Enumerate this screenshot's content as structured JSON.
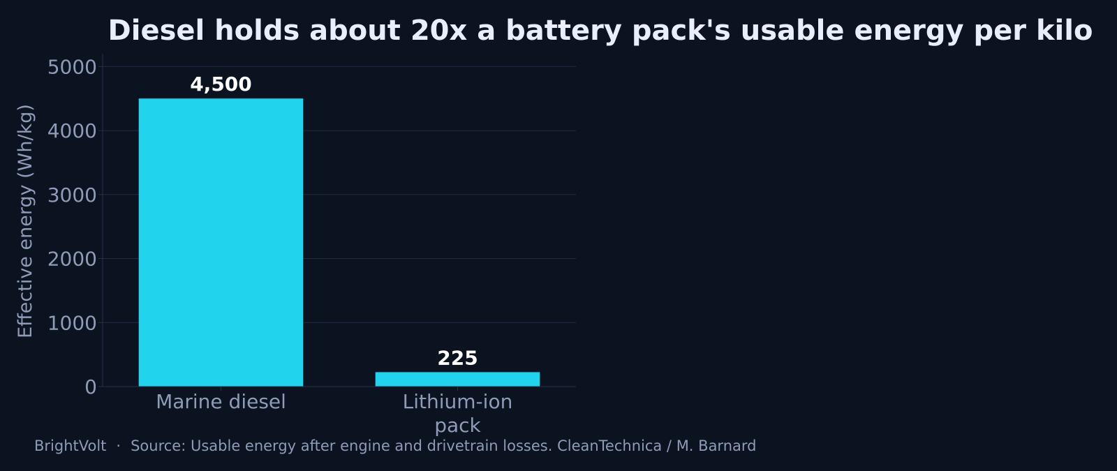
{
  "chart_data": {
    "type": "bar",
    "title": "Diesel holds about 20x a battery pack's usable energy per kilo",
    "categories": [
      [
        "Marine diesel"
      ],
      [
        "Lithium-ion",
        "pack"
      ]
    ],
    "values": [
      4500,
      225
    ],
    "value_labels": [
      "4,500",
      "225"
    ],
    "xlabel": "",
    "ylabel": "Effective energy (Wh/kg)",
    "ylim": [
      0,
      5200
    ],
    "yticks": [
      0,
      1000,
      2000,
      3000,
      4000,
      5000
    ],
    "grid": true,
    "legend": "none",
    "colors": {
      "bar": "#22d3ee",
      "background": "#0b1220"
    }
  },
  "footer": {
    "brand": "BrightVolt",
    "separator": "·",
    "source": "Source: Usable energy after engine and drivetrain losses. CleanTechnica / M. Barnard"
  }
}
